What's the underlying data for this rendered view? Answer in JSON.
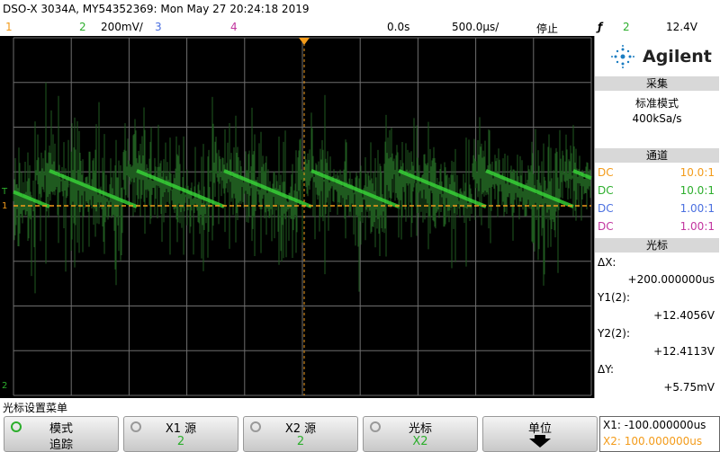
{
  "header": {
    "title": "DSO-X 3034A, MY54352369: Mon May 27 20:24:18 2019"
  },
  "status_bar": {
    "ch1": "1",
    "ch2": "2",
    "ch2_scale": "200mV/",
    "ch3": "3",
    "ch4": "4",
    "delay": "0.0s",
    "timebase": "500.0µs/",
    "run_state": "停止",
    "trigger_symbol": "ƒ",
    "trigger_source": "2",
    "trigger_level": "12.4V"
  },
  "screen": {
    "ch1_marker": "1",
    "ch2_marker": "2",
    "trigger_marker": "T"
  },
  "panel": {
    "brand": "Agilent",
    "acquire": {
      "title": "采集",
      "mode": "标准模式",
      "rate": "400kSa/s"
    },
    "channels": {
      "title": "通道",
      "rows": [
        [
          "DC",
          "10.0:1"
        ],
        [
          "DC",
          "10.0:1"
        ],
        [
          "DC",
          "1.00:1"
        ],
        [
          "DC",
          "1.00:1"
        ]
      ]
    },
    "cursors": {
      "title": "光标",
      "dx_label": "ΔX:",
      "dx": "+200.000000us",
      "y1_label": "Y1(2):",
      "y1": "+12.4056V",
      "y2_label": "Y2(2):",
      "y2": "+12.4113V",
      "dy_label": "ΔY:",
      "dy": "+5.75mV"
    }
  },
  "menu": {
    "title": "光标设置菜单",
    "softkeys": [
      [
        "模式",
        "追踪"
      ],
      [
        "X1 源",
        "2"
      ],
      [
        "X2 源",
        "2"
      ],
      [
        "光标",
        "X2"
      ],
      [
        "单位",
        ""
      ]
    ]
  },
  "readout": {
    "x1": "X1: -100.000000us",
    "x2": "X2: 100.000000us"
  }
}
